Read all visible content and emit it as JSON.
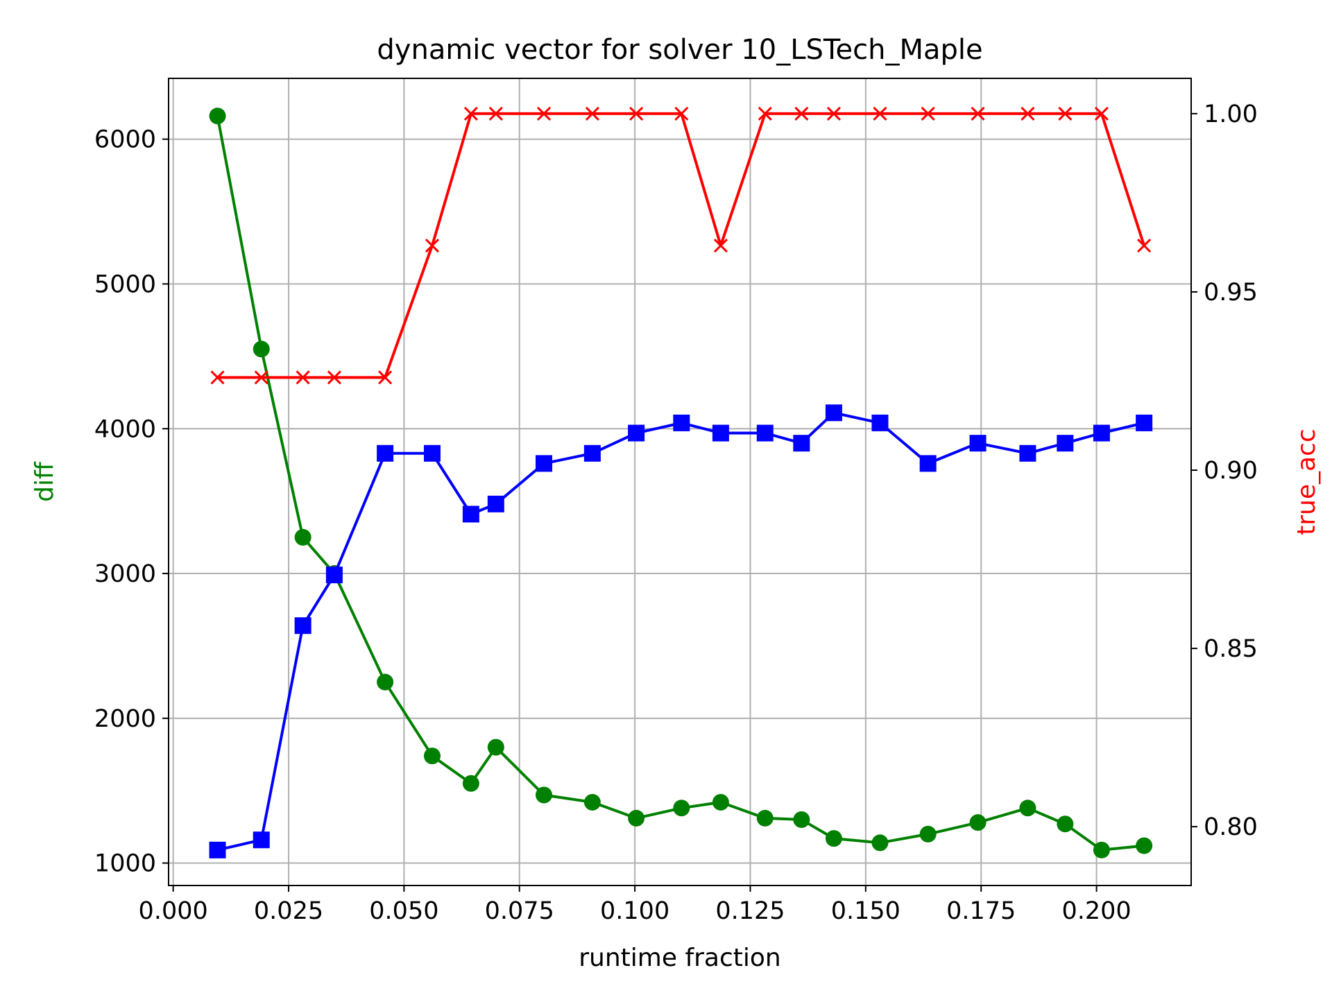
{
  "chart_data": {
    "type": "line",
    "title": "dynamic vector for solver 10_LSTech_Maple",
    "xlabel": "runtime fraction",
    "ylabel_left": "diff",
    "ylabel_right": "true_acc",
    "xlim": [
      -0.001,
      0.2205
    ],
    "ylim_left": [
      845,
      6420
    ],
    "ylim_right": [
      0.7835,
      1.0099
    ],
    "xticks": [
      0.0,
      0.025,
      0.05,
      0.075,
      0.1,
      0.125,
      0.15,
      0.175,
      0.2
    ],
    "xtick_labels": [
      "0.000",
      "0.025",
      "0.050",
      "0.075",
      "0.100",
      "0.125",
      "0.150",
      "0.175",
      "0.200"
    ],
    "yticks_left": [
      1000,
      2000,
      3000,
      4000,
      5000,
      6000
    ],
    "ytick_labels_left": [
      "1000",
      "2000",
      "3000",
      "4000",
      "5000",
      "6000"
    ],
    "yticks_right": [
      0.8,
      0.85,
      0.9,
      0.95,
      1.0
    ],
    "ytick_labels_right": [
      "0.80",
      "0.85",
      "0.90",
      "0.95",
      "1.00"
    ],
    "grid": true,
    "colors": {
      "green": "#008000",
      "blue": "#0000ff",
      "red": "#ff0000",
      "grid": "#b0b0b0",
      "axis": "#000000"
    },
    "series": [
      {
        "axis": "left",
        "color": "#008000",
        "marker": "circle",
        "x": [
          0.0096,
          0.0191,
          0.0281,
          0.0349,
          0.0459,
          0.0561,
          0.0645,
          0.0699,
          0.0803,
          0.0908,
          0.1003,
          0.1101,
          0.1186,
          0.1282,
          0.1361,
          0.1431,
          0.1531,
          0.1635,
          0.1743,
          0.1851,
          0.1932,
          0.2011,
          0.2103
        ],
        "values": [
          6160,
          4550,
          3250,
          3000,
          2250,
          1740,
          1550,
          1800,
          1470,
          1420,
          1310,
          1380,
          1420,
          1310,
          1300,
          1170,
          1140,
          1200,
          1280,
          1380,
          1270,
          1090,
          1120
        ]
      },
      {
        "axis": "left",
        "color": "#0000ff",
        "marker": "square",
        "x": [
          0.0096,
          0.0191,
          0.0281,
          0.0349,
          0.0459,
          0.0561,
          0.0645,
          0.0699,
          0.0803,
          0.0908,
          0.1003,
          0.1101,
          0.1186,
          0.1282,
          0.1361,
          0.1431,
          0.1531,
          0.1635,
          0.1743,
          0.1851,
          0.1932,
          0.2011,
          0.2103
        ],
        "values": [
          1090,
          1160,
          2640,
          2990,
          3830,
          3830,
          3410,
          3480,
          3760,
          3830,
          3970,
          4040,
          3970,
          3970,
          3900,
          4110,
          4040,
          3760,
          3900,
          3830,
          3900,
          3970,
          4040
        ]
      },
      {
        "axis": "right",
        "color": "#ff0000",
        "marker": "x",
        "x": [
          0.0096,
          0.0191,
          0.0281,
          0.0349,
          0.0459,
          0.0561,
          0.0645,
          0.0699,
          0.0803,
          0.0908,
          0.1003,
          0.1101,
          0.1186,
          0.1282,
          0.1361,
          0.1431,
          0.1531,
          0.1635,
          0.1743,
          0.1851,
          0.1932,
          0.2011,
          0.2103
        ],
        "values": [
          0.926,
          0.926,
          0.926,
          0.926,
          0.926,
          0.963,
          1.0,
          1.0,
          1.0,
          1.0,
          1.0,
          1.0,
          0.963,
          1.0,
          1.0,
          1.0,
          1.0,
          1.0,
          1.0,
          1.0,
          1.0,
          1.0,
          0.963
        ]
      }
    ]
  }
}
